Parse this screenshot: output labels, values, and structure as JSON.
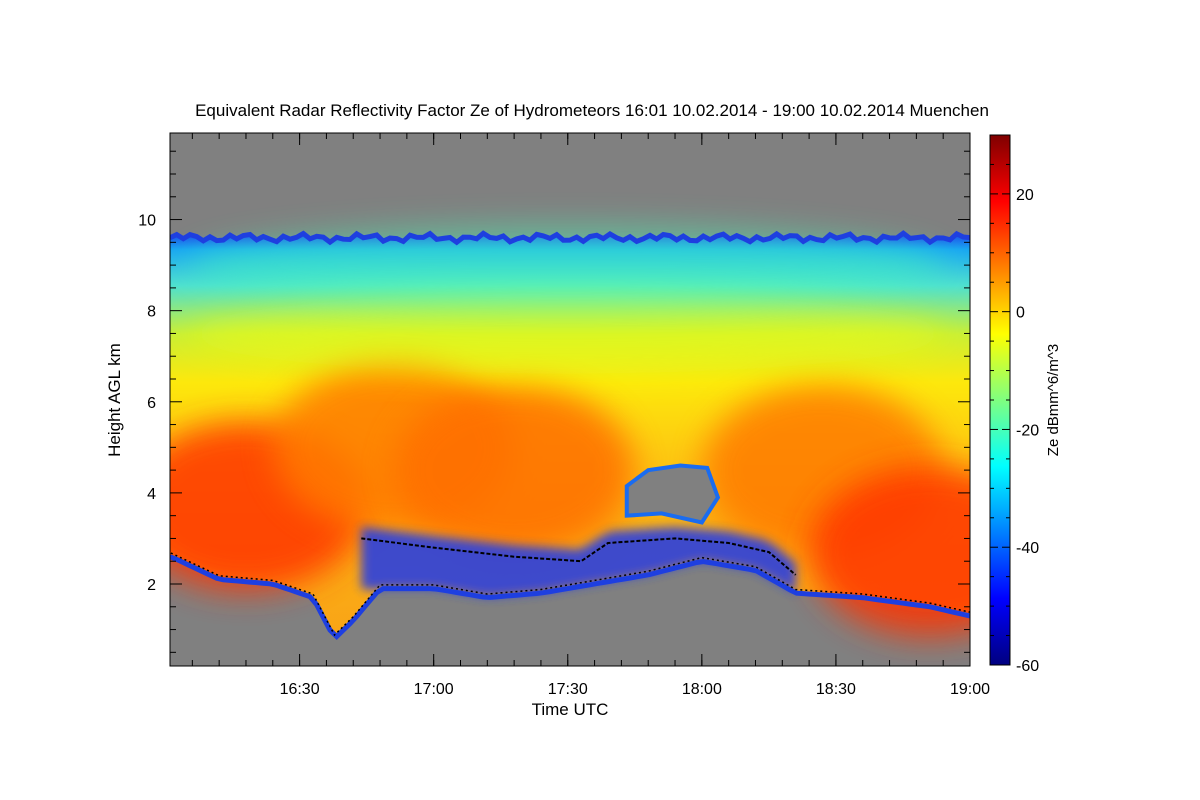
{
  "chart_data": {
    "type": "heatmap",
    "title": "Equivalent Radar Reflectivity Factor Ze of Hydrometeors   16:01 10.02.2014 - 19:00 10.02.2014 Muenchen",
    "xlabel": "Time UTC",
    "ylabel": "Height AGL km",
    "xlim": [
      16.0167,
      19.0
    ],
    "ylim": [
      0.2,
      11.9
    ],
    "x_ticks": [
      {
        "value": 16.5,
        "label": "16:30"
      },
      {
        "value": 17.0,
        "label": "17:00"
      },
      {
        "value": 17.5,
        "label": "17:30"
      },
      {
        "value": 18.0,
        "label": "18:00"
      },
      {
        "value": 18.5,
        "label": "18:30"
      },
      {
        "value": 19.0,
        "label": "19:00"
      }
    ],
    "y_ticks": [
      {
        "value": 2,
        "label": "2"
      },
      {
        "value": 4,
        "label": "4"
      },
      {
        "value": 6,
        "label": "6"
      },
      {
        "value": 8,
        "label": "8"
      },
      {
        "value": 10,
        "label": "10"
      }
    ],
    "colorbar": {
      "label": "Ze dBmm^6/m^3",
      "range": [
        -60,
        30
      ],
      "ticks": [
        {
          "value": -60,
          "label": "-60"
        },
        {
          "value": -40,
          "label": "-40"
        },
        {
          "value": -20,
          "label": "-20"
        },
        {
          "value": 0,
          "label": "0"
        },
        {
          "value": 20,
          "label": "20"
        }
      ]
    },
    "no_data_color": "#808080",
    "cloud_top_km": 9.6,
    "cloud_base_km": [
      {
        "t": 16.02,
        "h": 2.6
      },
      {
        "t": 16.2,
        "h": 2.1
      },
      {
        "t": 16.4,
        "h": 2.0
      },
      {
        "t": 16.55,
        "h": 1.7
      },
      {
        "t": 16.63,
        "h": 0.8
      },
      {
        "t": 16.7,
        "h": 1.2
      },
      {
        "t": 16.8,
        "h": 1.9
      },
      {
        "t": 17.0,
        "h": 1.9
      },
      {
        "t": 17.2,
        "h": 1.7
      },
      {
        "t": 17.4,
        "h": 1.8
      },
      {
        "t": 17.6,
        "h": 2.0
      },
      {
        "t": 17.8,
        "h": 2.2
      },
      {
        "t": 18.0,
        "h": 2.5
      },
      {
        "t": 18.2,
        "h": 2.3
      },
      {
        "t": 18.35,
        "h": 1.8
      },
      {
        "t": 18.6,
        "h": 1.7
      },
      {
        "t": 18.85,
        "h": 1.5
      },
      {
        "t": 19.0,
        "h": 1.3
      }
    ],
    "melting_layer_km": [
      {
        "t": 16.73,
        "h": 3.0
      },
      {
        "t": 17.0,
        "h": 2.8
      },
      {
        "t": 17.3,
        "h": 2.6
      },
      {
        "t": 17.55,
        "h": 2.5
      },
      {
        "t": 17.65,
        "h": 2.9
      },
      {
        "t": 17.9,
        "h": 3.0
      },
      {
        "t": 18.1,
        "h": 2.9
      },
      {
        "t": 18.25,
        "h": 2.7
      },
      {
        "t": 18.35,
        "h": 2.2
      }
    ],
    "reflectivity_regions_dBZ": [
      {
        "t": 16.3,
        "h": 3.7,
        "value": 14
      },
      {
        "t": 16.85,
        "h": 5.0,
        "value": 8
      },
      {
        "t": 17.3,
        "h": 4.5,
        "value": 9
      },
      {
        "t": 18.45,
        "h": 4.5,
        "value": 8
      },
      {
        "t": 18.85,
        "h": 2.7,
        "value": 14
      },
      {
        "t": 17.5,
        "h": 7.5,
        "value": -5
      },
      {
        "t": 17.5,
        "h": 9.0,
        "value": -20
      }
    ]
  }
}
